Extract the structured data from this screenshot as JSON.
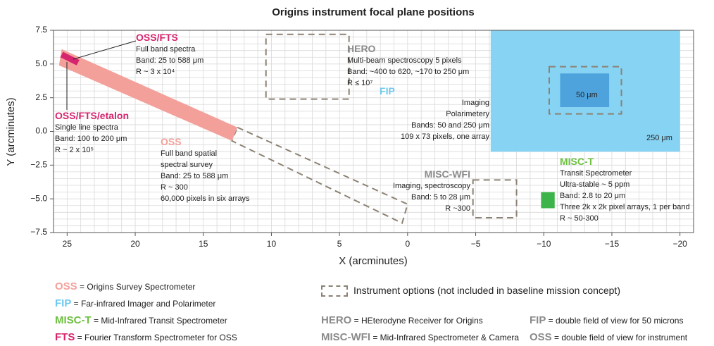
{
  "chart_data": {
    "type": "focalplane",
    "title": "Origins instrument focal plane positions",
    "xlabel": "X (arcminutes)",
    "ylabel": "Y (arcminutes)",
    "xlim": [
      26,
      -21
    ],
    "ylim": [
      -7.5,
      7.5
    ],
    "xticks": [
      25,
      20,
      15,
      10,
      5,
      0,
      {
        "value": -5,
        "label": "−5"
      },
      {
        "value": -10,
        "label": "−10"
      },
      {
        "value": -15,
        "label": "−15"
      },
      {
        "value": -20,
        "label": "−20"
      }
    ],
    "yticks": [
      7.5,
      {
        "value": 5,
        "label": "5.0"
      },
      2.5,
      {
        "value": 0,
        "label": "0.0"
      },
      {
        "value": -2.5,
        "label": "−2.5"
      },
      {
        "value": -5,
        "label": "−5.0"
      },
      {
        "value": -7.5,
        "label": "−7.5"
      }
    ],
    "grid": true,
    "minor_grid": {
      "x": 1,
      "y": 0.5
    },
    "regions": [
      {
        "color": "#87d3f3",
        "dashed": false,
        "points": [
          [
            -6.1,
            7.5
          ],
          [
            -20,
            7.5
          ],
          [
            -20,
            -1.5
          ],
          [
            -6.1,
            -1.5
          ]
        ]
      },
      {
        "color": "#4fa3dc",
        "dashed": false,
        "points": [
          [
            -11.2,
            4.3
          ],
          [
            -14.8,
            4.3
          ],
          [
            -14.8,
            1.8
          ],
          [
            -11.2,
            1.8
          ]
        ]
      },
      {
        "color": "#8c8273",
        "dashed": true,
        "points": [
          [
            -10.4,
            4.8
          ],
          [
            -15.7,
            4.8
          ],
          [
            -15.7,
            1.3
          ],
          [
            -10.4,
            1.3
          ]
        ]
      },
      {
        "color": "#8c8273",
        "dashed": true,
        "points": [
          [
            10.4,
            7.2
          ],
          [
            4.3,
            7.2
          ],
          [
            4.3,
            2.4
          ],
          [
            10.4,
            2.4
          ]
        ]
      },
      {
        "color": "#8c8273",
        "dashed": true,
        "points": [
          [
            -4.8,
            -3.6
          ],
          [
            -8,
            -3.6
          ],
          [
            -8,
            -6.4
          ],
          [
            -4.8,
            -6.4
          ]
        ]
      },
      {
        "color": "#8c8273",
        "dashed": true,
        "points": [
          [
            12.5,
            0.3
          ],
          [
            0,
            -5.4
          ],
          [
            0.4,
            -6.8
          ],
          [
            12.9,
            -0.7
          ]
        ]
      },
      {
        "color": "#f4a09a",
        "dashed": false,
        "points": [
          [
            25.4,
            6.1
          ],
          [
            12.5,
            0.3
          ],
          [
            12.9,
            -0.7
          ],
          [
            25.6,
            4.9
          ]
        ]
      },
      {
        "color": "#d6246e",
        "dashed": false,
        "points": [
          [
            25.3,
            5.9
          ],
          [
            24.1,
            5.3
          ],
          [
            24.3,
            4.9
          ],
          [
            25.5,
            5.5
          ]
        ]
      },
      {
        "color": "#3db449",
        "dashed": false,
        "points": [
          [
            -9.8,
            -4.5
          ],
          [
            -10.8,
            -4.5
          ],
          [
            -10.8,
            -5.7
          ],
          [
            -9.8,
            -5.7
          ]
        ]
      }
    ],
    "annotations": [
      {
        "title": "OSS/FTS",
        "lines": [
          "Full band spectra",
          "Band: 25 to 588 μm",
          "R ~ 3 x 10⁴"
        ]
      },
      {
        "title": "OSS/FTS/etalon",
        "lines": [
          "Single line spectra",
          "Band: 100 to 200 μm",
          "R ~ 2 x 10⁵"
        ]
      },
      {
        "title": "OSS",
        "lines": [
          "Full band spatial",
          "spectral survey",
          "Band: 25 to 588 μm",
          "R ~ 300",
          "60,000 pixels in six arrays"
        ]
      },
      {
        "title": "HERO",
        "lines": [
          "Multi-beam spectroscopy 5 pixels",
          "Band: ~400 to 620, ~170 to 250 μm",
          "R ≤ 10⁷"
        ]
      },
      {
        "title": "FIP",
        "lines": [
          "Imaging",
          "Polarimetery",
          "Bands: 50 and 250 μm",
          "109 x 73 pixels, one array"
        ]
      },
      {
        "title": "MISC-WFI",
        "lines": [
          "Imaging, spectroscopy",
          "Band: 5 to 28 μm",
          "R ~300"
        ]
      },
      {
        "title": "MISC-T",
        "lines": [
          "Transit Spectrometer",
          "Ultra-stable ~ 5 ppm",
          "Band: 2.8 to 20 μm",
          "Three 2k x 2k pixel arrays, 1 per band",
          "R ~ 50-300"
        ]
      }
    ],
    "region_labels": [
      "50 μm",
      "250 μm"
    ],
    "legend": [
      {
        "key": "OSS",
        "text": " = Origins Survey Spectrometer"
      },
      {
        "key": "FIP",
        "text": " = Far-infrared Imager and Polarimeter"
      },
      {
        "key": "MISC-T",
        "text": " = Mid-Infrared Transit Spectrometer"
      },
      {
        "key": "FTS",
        "text": " = Fourier Transform Spectrometer for OSS"
      },
      {
        "key": "HERO",
        "text": " = HEterodyne Receiver for Origins"
      },
      {
        "key": "MISC-WFI",
        "text": " = Mid-Infrared Spectrometer & Camera"
      },
      {
        "key": "FIP",
        "text": " = double field of view for 50 microns"
      },
      {
        "key": "OSS",
        "text": " = double  field of view for instrument"
      }
    ],
    "options_note": "Instrument options (not included in baseline mission concept)"
  }
}
